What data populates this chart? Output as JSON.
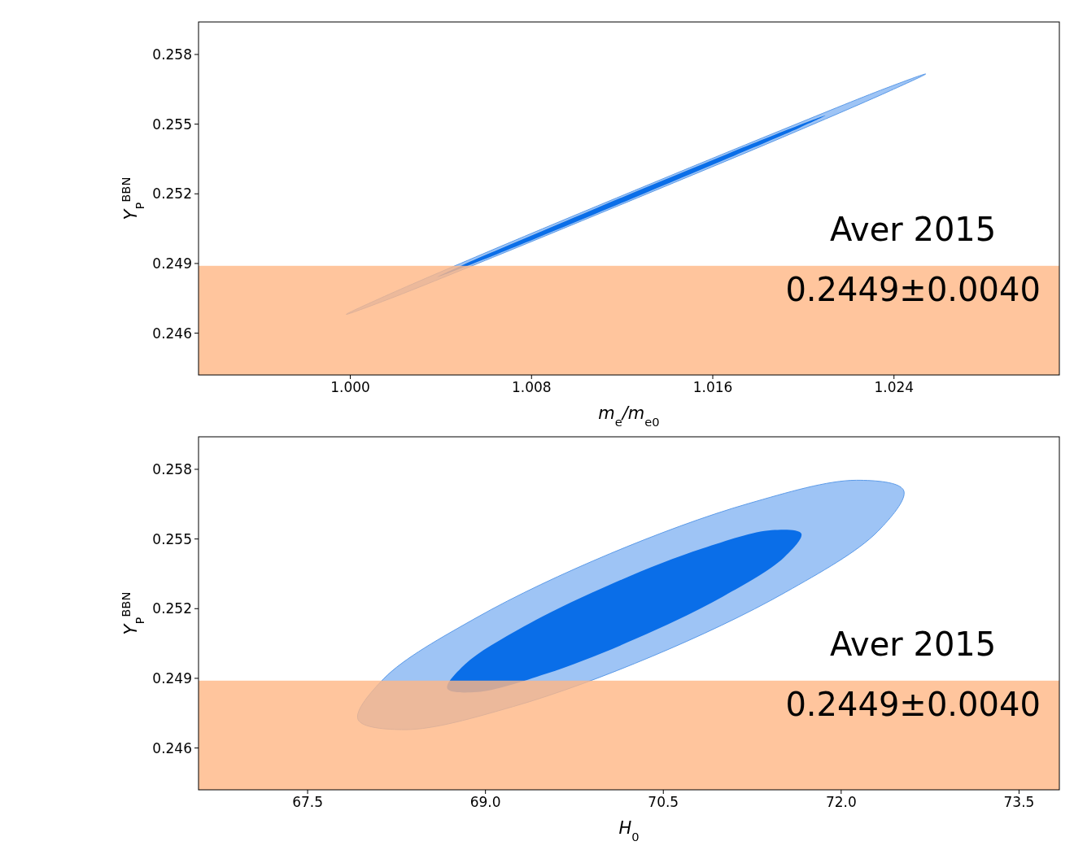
{
  "chart_data": [
    {
      "type": "area",
      "xlabel": "m$_{e}$/m$_{e0}$",
      "ylabel": "Y$_{P}$$^{BBN}$",
      "annotations": [
        "Aver 2015",
        "0.2449±0.0040"
      ],
      "xlim": [
        0.9933,
        1.0313
      ],
      "xticks": [
        {
          "value": 1,
          "label": "1.000"
        },
        {
          "value": 1.008,
          "label": "1.008"
        },
        {
          "value": 1.016,
          "label": "1.016"
        },
        {
          "value": 1.024,
          "label": "1.024"
        }
      ],
      "ylim": [
        0.2442,
        0.2594
      ],
      "yticks": [
        0.246,
        0.249,
        0.252,
        0.255,
        0.258
      ],
      "grid": false,
      "bands": [
        {
          "axis": "y",
          "from": 0.2442,
          "to": 0.2489,
          "color": "#ffb785"
        }
      ],
      "series": [
        {
          "color": "#9ec4f5",
          "x": [
            1.0254,
            1.02372,
            1.01907,
            1.01268,
            1.00628,
            1.00157,
            0.99982,
            1.0015,
            1.00616,
            1.01254,
            1.01895,
            1.02365
          ],
          "values": [
            0.25716,
            0.25639,
            0.25443,
            0.25183,
            0.24926,
            0.24742,
            0.24681,
            0.24758,
            0.24954,
            0.25214,
            0.25471,
            0.25655
          ]
        },
        {
          "color": "#0a6ee8",
          "x": [
            1.02097,
            1.01984,
            1.01672,
            1.01245,
            1.00816,
            1.00501,
            1.00384,
            1.00497,
            1.00809,
            1.01237,
            1.01665,
            1.0198
          ],
          "values": [
            0.25537,
            0.25485,
            0.25355,
            0.2518,
            0.25007,
            0.24884,
            0.24842,
            0.24894,
            0.25024,
            0.252,
            0.25372,
            0.25495
          ]
        }
      ]
    },
    {
      "type": "area",
      "xlabel": "H$_{0}$",
      "ylabel": "Y$_{P}$$^{BBN}$",
      "annotations": [
        "Aver 2015",
        "0.2449±0.0040"
      ],
      "xlim": [
        66.58,
        73.84
      ],
      "xticks": [
        67.5,
        {
          "value": 69,
          "label": "69.0"
        },
        70.5,
        {
          "value": 72,
          "label": "72.0"
        },
        73.5
      ],
      "ylim": [
        0.2442,
        0.2594
      ],
      "yticks": [
        0.246,
        0.249,
        0.252,
        0.255,
        0.258
      ],
      "grid": false,
      "bands": [
        {
          "axis": "y",
          "from": 0.2442,
          "to": 0.2489,
          "color": "#ffb785"
        }
      ],
      "series": [
        {
          "color": "#9ec4f5",
          "x": [
            72.527,
            72.309,
            71.532,
            70.406,
            69.231,
            68.323,
            67.925,
            68.143,
            68.92,
            70.047,
            71.221,
            72.129
          ],
          "values": [
            0.25709,
            0.25533,
            0.25271,
            0.24995,
            0.24778,
            0.24679,
            0.24723,
            0.24899,
            0.2516,
            0.25436,
            0.25653,
            0.25753
          ]
        },
        {
          "color": "#0a6ee8",
          "x": [
            71.664,
            71.515,
            71.005,
            70.272,
            69.512,
            68.929,
            68.678,
            68.827,
            69.323,
            70.07,
            70.83,
            71.413
          ],
          "values": [
            0.25523,
            0.25419,
            0.25253,
            0.25071,
            0.2492,
            0.24841,
            0.24856,
            0.2496,
            0.25123,
            0.25308,
            0.25459,
            0.25538
          ]
        }
      ]
    }
  ]
}
